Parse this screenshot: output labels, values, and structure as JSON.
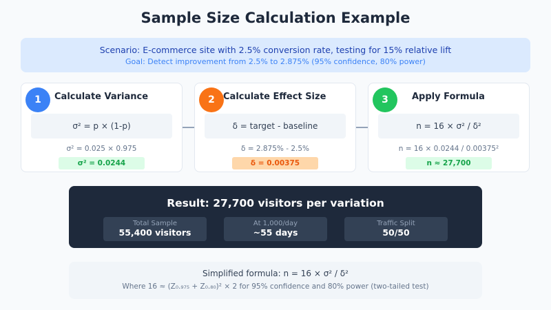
{
  "title": "Sample Size Calculation Example",
  "scenario": {
    "line1": "Scenario: E-commerce site with 2.5% conversion rate, testing for 15% relative lift",
    "line2": "Goal: Detect improvement from 2.5% to 2.875% (95% confidence, 80% power)"
  },
  "steps": [
    {
      "number": "1",
      "title": "Calculate Variance",
      "formula": "σ² = p × (1-p)",
      "calc": "σ² = 0.025 × 0.975",
      "result": "σ² = 0.0244",
      "color": "#3b82f6"
    },
    {
      "number": "2",
      "title": "Calculate Effect Size",
      "formula": "δ = target - baseline",
      "calc": "δ = 2.875% - 2.5%",
      "result": "δ = 0.00375",
      "color": "#f97316"
    },
    {
      "number": "3",
      "title": "Apply Formula",
      "formula": "n = 16 × σ² / δ²",
      "calc": "n = 16 × 0.0244 / 0.00375²",
      "result": "n ≈ 27,700",
      "color": "#22c55e"
    }
  ],
  "result": {
    "title": "Result: 27,700 visitors per variation",
    "stats": [
      {
        "label": "Total Sample",
        "value": "55,400 visitors"
      },
      {
        "label": "At 1,000/day",
        "value": "~55 days"
      },
      {
        "label": "Traffic Split",
        "value": "50/50"
      }
    ]
  },
  "formula": {
    "line1": "Simplified formula: n = 16 × σ² / δ²",
    "line2": "Where 16 ≈ (Z₀.₉₇₅ + Z₀.₈₀)² × 2 for 95% confidence and 80% power (two-tailed test)"
  }
}
